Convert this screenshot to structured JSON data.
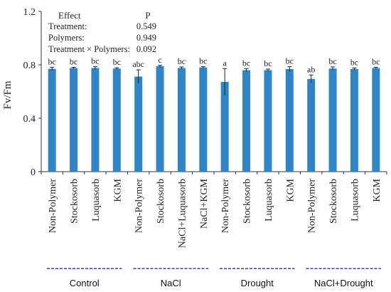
{
  "chart_data": {
    "type": "bar",
    "ylabel": "Fv/Fm",
    "ylim": [
      0,
      1.2
    ],
    "yticks": [
      "0",
      "0.4",
      "0.8",
      "1.2"
    ],
    "categories": [
      "Non-Polymer",
      "Stockosorb",
      "Luquasorb",
      "KGM",
      "Non-Polymer",
      "Stockosorb",
      "NaCl+Luquasorb",
      "NaCl+KGM",
      "Non-Polymer",
      "Stockosorb",
      "Luquasorb",
      "KGM",
      "Non-Polymer",
      "Stockosorb",
      "Luquasorb",
      "KGM"
    ],
    "series": [
      {
        "values": [
          0.77,
          0.776,
          0.776,
          0.772,
          0.712,
          0.79,
          0.776,
          0.78,
          0.672,
          0.76,
          0.76,
          0.768,
          0.694,
          0.772,
          0.768,
          0.776
        ],
        "errors": [
          0.012,
          0.006,
          0.01,
          0.006,
          0.05,
          0.006,
          0.008,
          0.006,
          0.1,
          0.012,
          0.008,
          0.018,
          0.03,
          0.012,
          0.008,
          0.006
        ],
        "letters": [
          "bc",
          "bc",
          "bc",
          "bc",
          "abc",
          "c",
          "bc",
          "bc",
          "a",
          "bc",
          "bc",
          "bc",
          "ab",
          "bc",
          "bc",
          "bc"
        ]
      }
    ],
    "groups": [
      "Control",
      "NaCl",
      "Drought",
      "NaCl+Drought"
    ],
    "colors": {
      "bar": "#2e86c8",
      "group_line": "#3a3ab0",
      "axis": "#333333"
    },
    "grid": false,
    "stats_box": {
      "header_left": "Effect",
      "header_right": "P",
      "rows": [
        {
          "label": "Treatment:",
          "value": "0.549"
        },
        {
          "label": "Polymers:",
          "value": "0.949"
        },
        {
          "label": "Treatment × Polymers:",
          "value": "0.092"
        }
      ]
    }
  }
}
